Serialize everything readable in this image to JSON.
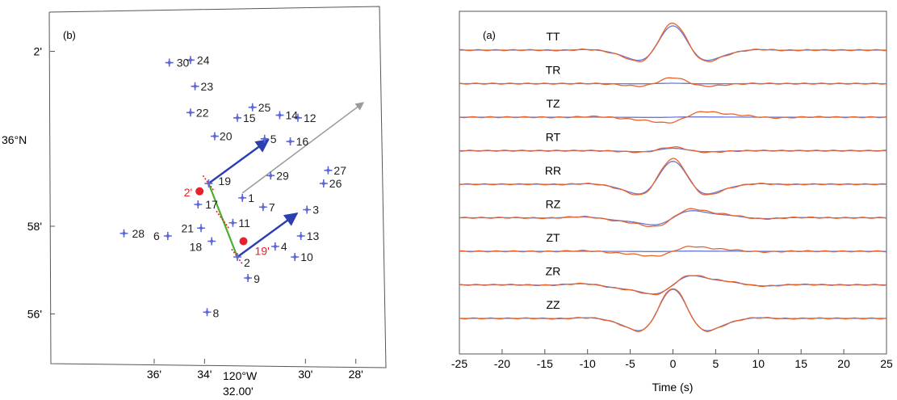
{
  "chart_data": [
    {
      "type": "scatter",
      "panel_label": "(b)",
      "xlabel": "120°W",
      "xlabel_sub": "32.00'",
      "ylabel": "36°N",
      "xlim_min": [
        -120.6667,
        -120.45
      ],
      "ylim_min": [
        35.915,
        36.0467
      ],
      "xtick_labels": [
        {
          "label": "36'",
          "lon": -120.6
        },
        {
          "label": "34'",
          "lon": -120.5667
        },
        {
          "label": "30'",
          "lon": -120.5
        },
        {
          "label": "28'",
          "lon": -120.4667
        }
      ],
      "ytick_labels": [
        {
          "label": "2'",
          "lat": 36.0333
        },
        {
          "label": "58'",
          "lat": 35.9667
        },
        {
          "label": "56'",
          "lat": 35.9333
        }
      ],
      "stations": [
        {
          "id": "1",
          "lon": -120.5417,
          "lat": 35.9775
        },
        {
          "id": "2",
          "lon": -120.545,
          "lat": 35.955
        },
        {
          "id": "3",
          "lon": -120.499,
          "lat": 35.973
        },
        {
          "id": "4",
          "lon": -120.52,
          "lat": 35.959
        },
        {
          "id": "5",
          "lon": -120.527,
          "lat": 36.0
        },
        {
          "id": "6",
          "lon": -120.591,
          "lat": 35.963
        },
        {
          "id": "7",
          "lon": -120.528,
          "lat": 35.974
        },
        {
          "id": "8",
          "lon": -120.565,
          "lat": 35.934
        },
        {
          "id": "9",
          "lon": -120.538,
          "lat": 35.947
        },
        {
          "id": "10",
          "lon": -120.507,
          "lat": 35.955
        },
        {
          "id": "11",
          "lon": -120.548,
          "lat": 35.968
        },
        {
          "id": "12",
          "lon": -120.505,
          "lat": 36.008
        },
        {
          "id": "13",
          "lon": -120.503,
          "lat": 35.963
        },
        {
          "id": "14",
          "lon": -120.517,
          "lat": 36.009
        },
        {
          "id": "15",
          "lon": -120.545,
          "lat": 36.008
        },
        {
          "id": "16",
          "lon": -120.51,
          "lat": 35.999
        },
        {
          "id": "17",
          "lon": -120.571,
          "lat": 35.975
        },
        {
          "id": "18",
          "lon": -120.562,
          "lat": 35.961
        },
        {
          "id": "19",
          "lon": -120.564,
          "lat": 35.983
        },
        {
          "id": "20",
          "lon": -120.56,
          "lat": 36.001
        },
        {
          "id": "21",
          "lon": -120.569,
          "lat": 35.966
        },
        {
          "id": "22",
          "lon": -120.576,
          "lat": 36.01
        },
        {
          "id": "23",
          "lon": -120.573,
          "lat": 36.02
        },
        {
          "id": "24",
          "lon": -120.576,
          "lat": 36.03
        },
        {
          "id": "25",
          "lon": -120.535,
          "lat": 36.012
        },
        {
          "id": "26",
          "lon": -120.488,
          "lat": 35.983
        },
        {
          "id": "27",
          "lon": -120.485,
          "lat": 35.988
        },
        {
          "id": "28",
          "lon": -120.62,
          "lat": 35.964
        },
        {
          "id": "29",
          "lon": -120.523,
          "lat": 35.986
        },
        {
          "id": "30",
          "lon": -120.59,
          "lat": 36.029
        }
      ],
      "virtual_sources": [
        {
          "label": "2'",
          "lon": -120.57,
          "lat": 35.98,
          "color": "#e8202a"
        },
        {
          "label": "19'",
          "lon": -120.541,
          "lat": 35.961,
          "color": "#e8202a"
        }
      ],
      "colors": {
        "station": "#5b68d6",
        "station_label": "#222222",
        "source": "#e8202a",
        "green_line": "#4caf2a",
        "blue_arrow": "#2b3fb0",
        "gray_arrow": "#9a9a9a"
      }
    },
    {
      "type": "line",
      "panel_label": "(a)",
      "xlabel": "Time (s)",
      "xlim": [
        -25,
        25
      ],
      "xticks": [
        -25,
        -20,
        -15,
        -10,
        -5,
        0,
        5,
        10,
        15,
        20,
        25
      ],
      "components": [
        "TT",
        "TR",
        "TZ",
        "RT",
        "RR",
        "RZ",
        "ZT",
        "ZR",
        "ZZ"
      ],
      "colors": {
        "observed": "#e8632a",
        "synthetic": "#6a78d8"
      }
    }
  ]
}
